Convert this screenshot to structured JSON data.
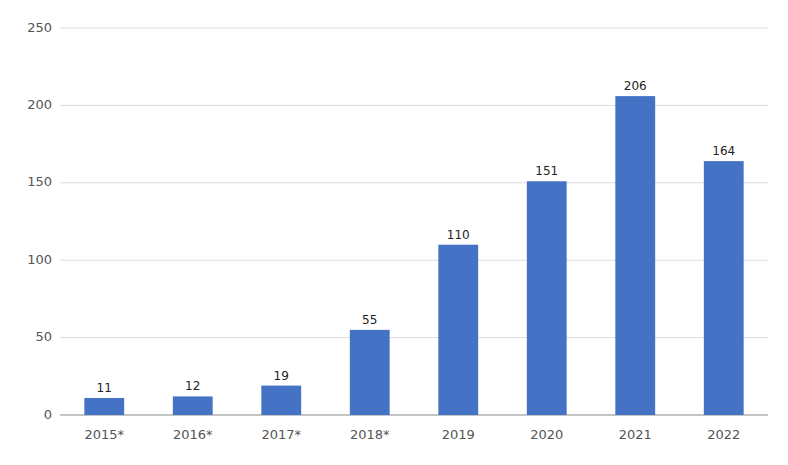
{
  "chart_data": {
    "type": "bar",
    "categories": [
      "2015*",
      "2016*",
      "2017*",
      "2018*",
      "2019",
      "2020",
      "2021",
      "2022"
    ],
    "values": [
      11,
      12,
      19,
      55,
      110,
      151,
      206,
      164
    ],
    "color": "#4472C4",
    "ylim": [
      0,
      250
    ],
    "yticks": [
      0,
      50,
      100,
      150,
      200,
      250
    ],
    "grid": true,
    "data_labels": true
  }
}
